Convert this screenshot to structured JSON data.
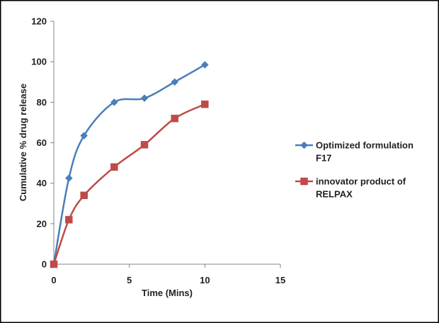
{
  "chart_data": {
    "type": "line",
    "title": "",
    "xlabel": "Time (Mins)",
    "ylabel": "Cumulative % drug release",
    "xlim": [
      0,
      15
    ],
    "ylim": [
      0,
      120
    ],
    "xticks": [
      0,
      5,
      10,
      15
    ],
    "yticks": [
      0,
      20,
      40,
      60,
      80,
      100,
      120
    ],
    "grid": false,
    "smooth": true,
    "legend_position": "right",
    "series": [
      {
        "name": "Optimized formulation F17",
        "name_lines": [
          "Optimized formulation",
          "F17"
        ],
        "color": "#4a7ebb",
        "marker": "diamond",
        "x": [
          0,
          1,
          2,
          4,
          6,
          8,
          10
        ],
        "y": [
          0,
          42.5,
          63.5,
          80,
          82,
          90,
          98.5
        ]
      },
      {
        "name": "innovator product of RELPAX",
        "name_lines": [
          "innovator product of",
          "RELPAX"
        ],
        "color": "#be4b48",
        "marker": "square",
        "x": [
          0,
          1,
          2,
          4,
          6,
          8,
          10
        ],
        "y": [
          0,
          22,
          34,
          48,
          59,
          72,
          79
        ]
      }
    ]
  }
}
